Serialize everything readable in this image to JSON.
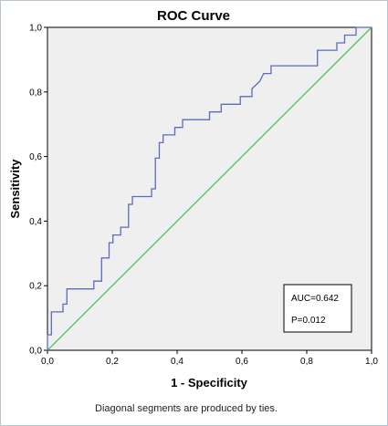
{
  "chart_data": {
    "type": "line",
    "title": "ROC Curve",
    "xlabel": "1 - Specificity",
    "ylabel": "Sensitivity",
    "xlim": [
      0,
      1
    ],
    "ylim": [
      0,
      1
    ],
    "x_ticks": [
      "0,0",
      "0,2",
      "0,4",
      "0,6",
      "0,8",
      "1,0"
    ],
    "y_ticks": [
      "0,0",
      "0,2",
      "0,4",
      "0,6",
      "0,8",
      "1,0"
    ],
    "grid": false,
    "series": [
      {
        "color": "#5a6cbb",
        "points": [
          [
            0,
            0
          ],
          [
            0,
            0.048
          ],
          [
            0.012,
            0.048
          ],
          [
            0.012,
            0.119
          ],
          [
            0.048,
            0.119
          ],
          [
            0.048,
            0.143
          ],
          [
            0.06,
            0.143
          ],
          [
            0.06,
            0.19
          ],
          [
            0.143,
            0.19
          ],
          [
            0.143,
            0.214
          ],
          [
            0.167,
            0.214
          ],
          [
            0.167,
            0.286
          ],
          [
            0.19,
            0.286
          ],
          [
            0.19,
            0.333
          ],
          [
            0.202,
            0.333
          ],
          [
            0.202,
            0.357
          ],
          [
            0.226,
            0.357
          ],
          [
            0.226,
            0.381
          ],
          [
            0.25,
            0.381
          ],
          [
            0.25,
            0.452
          ],
          [
            0.262,
            0.452
          ],
          [
            0.262,
            0.476
          ],
          [
            0.321,
            0.476
          ],
          [
            0.321,
            0.5
          ],
          [
            0.333,
            0.5
          ],
          [
            0.333,
            0.595
          ],
          [
            0.345,
            0.595
          ],
          [
            0.345,
            0.643
          ],
          [
            0.357,
            0.643
          ],
          [
            0.357,
            0.667
          ],
          [
            0.393,
            0.667
          ],
          [
            0.393,
            0.69
          ],
          [
            0.417,
            0.69
          ],
          [
            0.417,
            0.714
          ],
          [
            0.5,
            0.714
          ],
          [
            0.5,
            0.738
          ],
          [
            0.536,
            0.738
          ],
          [
            0.536,
            0.762
          ],
          [
            0.595,
            0.762
          ],
          [
            0.595,
            0.786
          ],
          [
            0.631,
            0.786
          ],
          [
            0.631,
            0.81
          ],
          [
            0.655,
            0.833
          ],
          [
            0.667,
            0.857
          ],
          [
            0.69,
            0.857
          ],
          [
            0.69,
            0.881
          ],
          [
            0.833,
            0.881
          ],
          [
            0.833,
            0.929
          ],
          [
            0.893,
            0.929
          ],
          [
            0.893,
            0.952
          ],
          [
            0.917,
            0.952
          ],
          [
            0.917,
            0.976
          ],
          [
            0.952,
            0.976
          ],
          [
            0.952,
            1.0
          ],
          [
            1.0,
            1.0
          ]
        ]
      },
      {
        "color": "#4dc266",
        "points": [
          [
            0,
            0
          ],
          [
            1,
            1
          ]
        ]
      }
    ],
    "annotations": [
      "AUC=0.642",
      "P=0.012"
    ],
    "footnote": "Diagonal segments are produced by ties."
  }
}
